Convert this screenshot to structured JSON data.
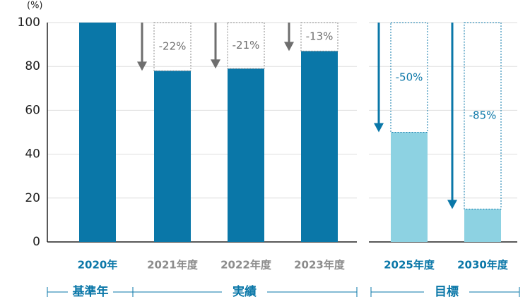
{
  "chart_data": {
    "type": "bar",
    "ylabel": "(%)",
    "categories": [
      "2020年",
      "2021年度",
      "2022年度",
      "2023年度",
      "2025年度",
      "2030年度"
    ],
    "values": [
      100,
      78,
      79,
      87,
      50,
      15
    ],
    "colors": [
      "#0a77a8",
      "#0a77a8",
      "#0a77a8",
      "#0a77a8",
      "#8dd2e2",
      "#8dd2e2"
    ],
    "label_colors": [
      "#0a77a8",
      "#8c8c8c",
      "#8c8c8c",
      "#8c8c8c",
      "#0a77a8",
      "#0a77a8"
    ],
    "annotations": [
      null,
      {
        "value": -22,
        "label": "-22%"
      },
      {
        "value": -21,
        "label": "-21%"
      },
      {
        "value": -13,
        "label": "-13%"
      },
      {
        "value": -50,
        "label": "-50%"
      },
      {
        "value": -85,
        "label": "-85%"
      }
    ],
    "annotation_colors": [
      null,
      "#6e6e6e",
      "#6e6e6e",
      "#6e6e6e",
      "#0a77a8",
      "#0a77a8"
    ],
    "groups": [
      "基準年",
      "実績",
      "目標"
    ],
    "ylim": [
      0,
      100
    ],
    "yticks": [
      0,
      20,
      40,
      60,
      80,
      100
    ],
    "grid": true
  }
}
